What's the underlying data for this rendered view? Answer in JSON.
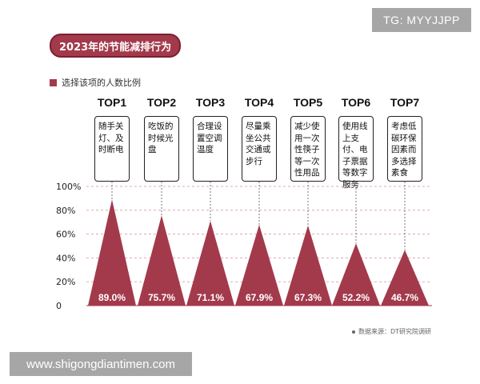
{
  "watermark_top": "TG: MYYJJPP",
  "watermark_bottom": "www.shigongdiantimen.com",
  "title": "2023年的节能减排行为",
  "legend_label": "选择该项的人数比例",
  "footnote": "数据来源：DT研究院调研",
  "colors": {
    "accent": "#a33a4c",
    "dark": "#7a1f30"
  },
  "chart_data": {
    "type": "bar",
    "shape": "triangle",
    "categories": [
      "TOP1",
      "TOP2",
      "TOP3",
      "TOP4",
      "TOP5",
      "TOP6",
      "TOP7"
    ],
    "descriptions": [
      "随手关灯、及时断电",
      "吃饭的时候光盘",
      "合理设置空调温度",
      "尽量乘坐公共交通或步行",
      "减少使用一次性筷子等一次性用品",
      "使用线上支付、电子票据等数字服务",
      "考虑低碳环保因素而多选择素食"
    ],
    "values": [
      89.0,
      75.7,
      71.1,
      67.9,
      67.3,
      52.2,
      46.7
    ],
    "value_labels": [
      "89.0%",
      "75.7%",
      "71.1%",
      "67.9%",
      "67.3%",
      "52.2%",
      "46.7%"
    ],
    "y_ticks": [
      "100%",
      "80%",
      "60%",
      "40%",
      "20%",
      "0"
    ],
    "ylim": [
      0,
      100
    ],
    "grid": true
  }
}
